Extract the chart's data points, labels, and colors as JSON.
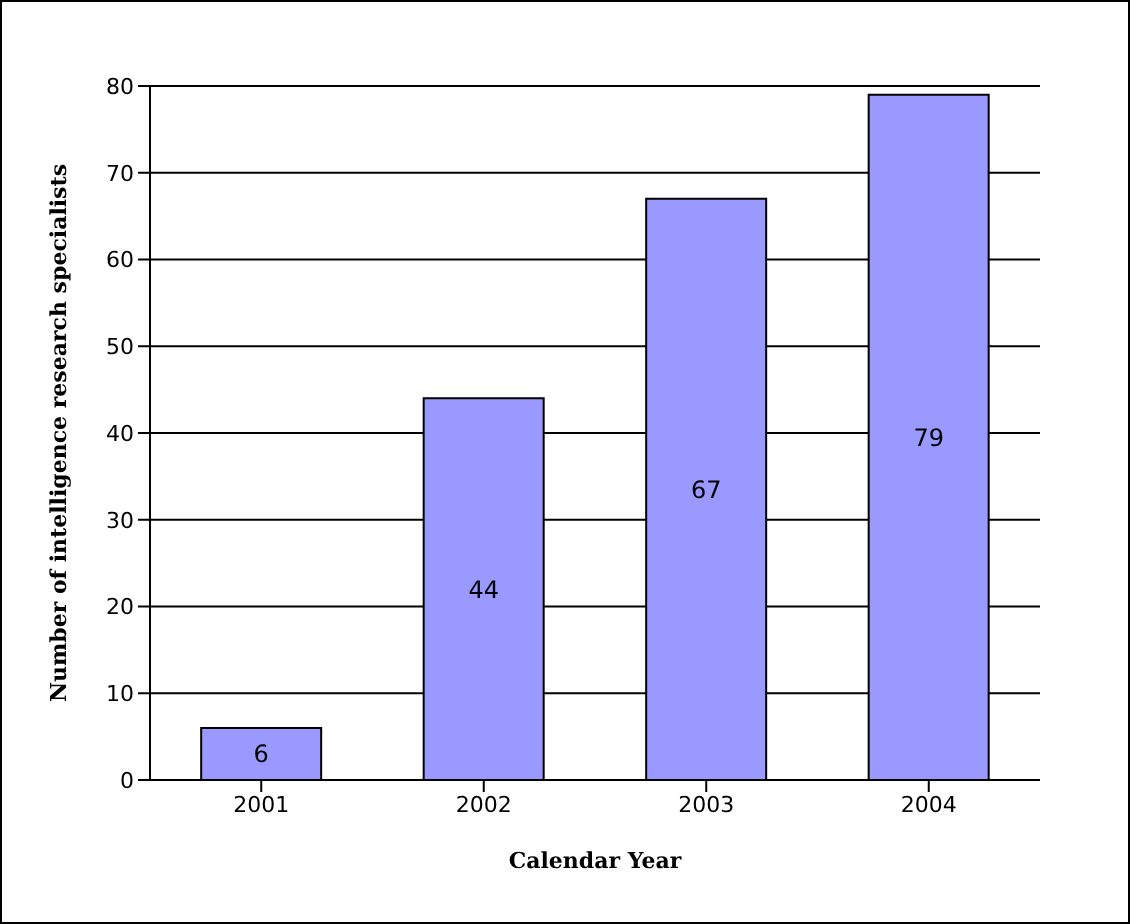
{
  "chart_data": {
    "type": "bar",
    "xlabel": "Calendar Year",
    "ylabel": "Number of intelligence research specialists",
    "categories": [
      "2001",
      "2002",
      "2003",
      "2004"
    ],
    "values": [
      6,
      44,
      67,
      79
    ],
    "color": "#9999ff",
    "ylim": [
      0,
      80
    ],
    "yticks": [
      0,
      10,
      20,
      30,
      40,
      50,
      60,
      70,
      80
    ],
    "grid": "y",
    "data_labels": true
  }
}
